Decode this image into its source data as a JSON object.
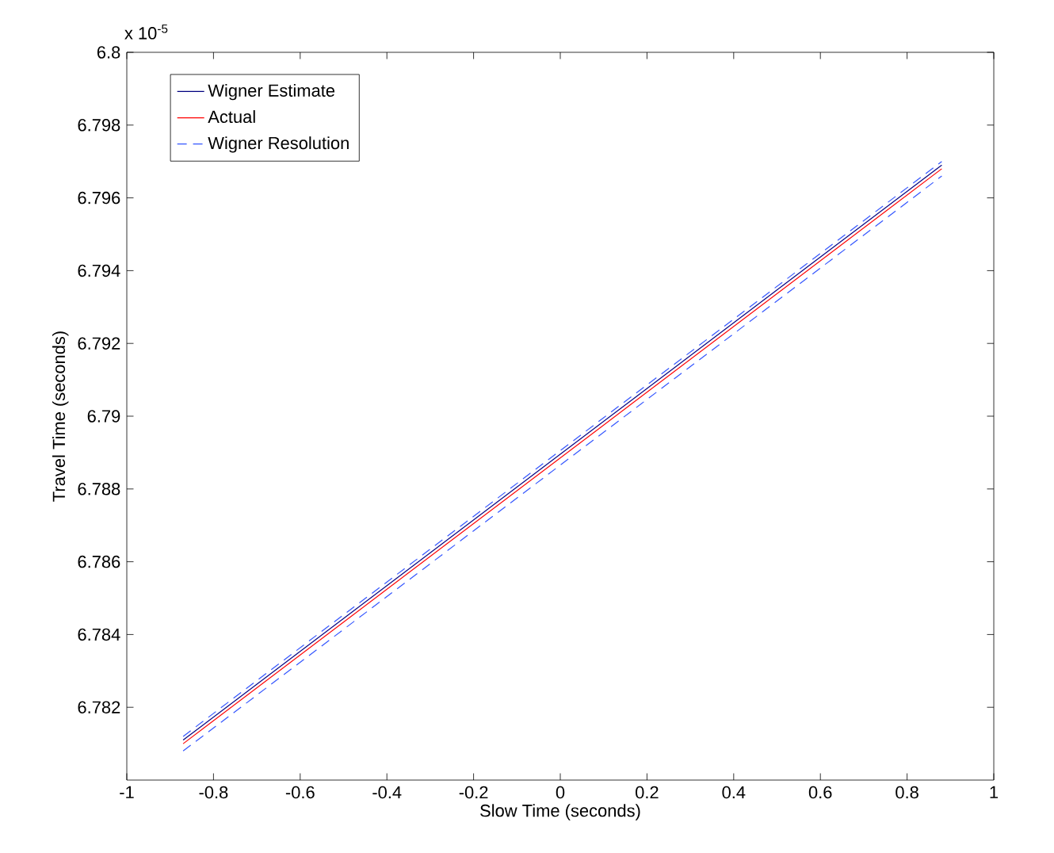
{
  "chart_data": {
    "type": "line",
    "xlabel": "Slow Time (seconds)",
    "ylabel": "Travel Time (seconds)",
    "annotations": [
      "x 10$^{-5}$"
    ],
    "xlim": [
      -1,
      1
    ],
    "ylim": [
      6.78,
      6.8
    ],
    "xticks": [
      -1,
      -0.8,
      -0.6,
      -0.4,
      -0.2,
      0,
      0.2,
      0.4,
      0.6,
      0.8,
      1
    ],
    "yticks": [
      6.782,
      6.784,
      6.786,
      6.788,
      6.79,
      6.792,
      6.794,
      6.796,
      6.798,
      6.8
    ],
    "legend": "top left",
    "grid": false,
    "x": [
      -0.87,
      0.88
    ],
    "series": [
      {
        "name": "Wigner Estimate",
        "color": "#00007f",
        "line_style": "solid",
        "values": [
          6.7811,
          6.7969
        ]
      },
      {
        "name": "Actual",
        "color": "#ff0000",
        "line_style": "solid",
        "values": [
          6.781,
          6.7968
        ]
      },
      {
        "name": "Wigner Resolution",
        "color": "#3355ff",
        "line_style": "dashed",
        "values": [
          6.7812,
          6.797
        ]
      },
      {
        "color": "#3355ff",
        "line_style": "dashed",
        "values": [
          6.7808,
          6.7966
        ]
      }
    ]
  }
}
